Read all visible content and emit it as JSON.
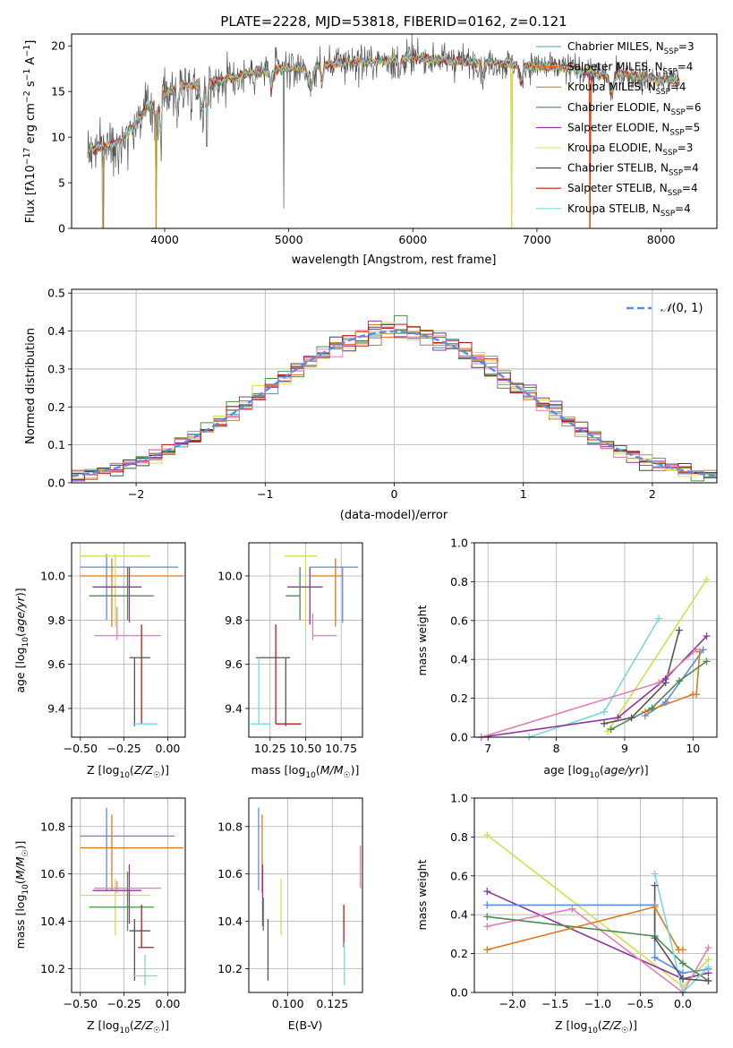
{
  "title": "PLATE=2228, MJD=53818, FIBERID=0162, z=0.121",
  "colors": {
    "Chabrier MILES": "#4a9db0",
    "Salpeter MILES": "#e2671a",
    "Kroupa MILES": "#c08a30",
    "Chabrier ELODIE": "#4e8b50",
    "Salpeter ELODIE": "#8e34a0",
    "Kroupa ELODIE": "#d4e24c",
    "Chabrier STELIB": "#444444",
    "Salpeter STELIB": "#c01818",
    "Kroupa STELIB": "#7ad8dc",
    "blue": "#5b8ce3",
    "orange": "#e07a1a",
    "green": "#4e8b50",
    "purple": "#8e34a0",
    "pink": "#e47fb4",
    "gray": "#555555",
    "red": "#c01818",
    "cyan": "#7ad8dc",
    "lime": "#cfe24c"
  },
  "chart_data": [
    {
      "type": "line",
      "name": "spectrum",
      "xlabel": "wavelength [Angstrom, rest frame]",
      "ylabel": "Flux [f_λ10^-17 erg cm^-2 s^-1 A^-1]",
      "xlim": [
        3250,
        8450
      ],
      "ylim": [
        0,
        21.3
      ],
      "xticks": [
        4000,
        5000,
        6000,
        7000,
        8000
      ],
      "yticks": [
        0,
        5,
        10,
        15,
        20
      ],
      "legend": [
        "Chabrier MILES, N_SSP=3",
        "Salpeter MILES, N_SSP=4",
        "Kroupa MILES, N_SSP=4",
        "Chabrier ELODIE, N_SSP=6",
        "Salpeter ELODIE, N_SSP=5",
        "Kroupa ELODIE, N_SSP=3",
        "Chabrier STELIB, N_SSP=4",
        "Salpeter STELIB, N_SSP=4",
        "Kroupa STELIB, N_SSP=4"
      ],
      "legend_loc": "lower right",
      "continuum": [
        [
          3380,
          8.6
        ],
        [
          3500,
          8.9
        ],
        [
          3650,
          9.6
        ],
        [
          3750,
          11.3
        ],
        [
          3850,
          13.0
        ],
        [
          3950,
          14.2
        ],
        [
          4100,
          15.6
        ],
        [
          4300,
          15.8
        ],
        [
          4500,
          16.4
        ],
        [
          4700,
          17.0
        ],
        [
          4900,
          17.4
        ],
        [
          5100,
          17.6
        ],
        [
          5300,
          17.9
        ],
        [
          5500,
          18.3
        ],
        [
          5700,
          18.3
        ],
        [
          5900,
          18.6
        ],
        [
          6100,
          18.6
        ],
        [
          6300,
          18.4
        ],
        [
          6500,
          18.2
        ],
        [
          6700,
          18.1
        ],
        [
          6900,
          17.9
        ],
        [
          7100,
          17.7
        ],
        [
          7300,
          17.5
        ],
        [
          7500,
          16.8
        ],
        [
          7700,
          16.9
        ],
        [
          7900,
          16.5
        ],
        [
          8150,
          16.2
        ]
      ],
      "dips": [
        [
          3505,
          0
        ],
        [
          3930,
          0
        ],
        [
          4340,
          9.0
        ],
        [
          4960,
          2.2
        ],
        [
          6795,
          0
        ],
        [
          7425,
          0
        ]
      ]
    },
    {
      "type": "histogram",
      "name": "residuals",
      "xlabel": "(data-model)/error",
      "ylabel": "Normed distribution",
      "xlim": [
        -2.5,
        2.5
      ],
      "ylim": [
        0,
        0.51
      ],
      "xticks": [
        -2,
        -1,
        0,
        1,
        2
      ],
      "yticks": [
        0,
        0.1,
        0.2,
        0.3,
        0.4,
        0.5
      ],
      "legend": "𝒩(0,1)",
      "bin_width": 0.1
    },
    {
      "type": "scatter",
      "name": "age-vs-Z",
      "xlabel": "Z [log10(Z/Z☉)]",
      "ylabel": "age  [log10(age/yr)]",
      "xlim": [
        -0.55,
        0.1
      ],
      "ylim": [
        9.27,
        10.15
      ],
      "xticks": [
        -0.5,
        -0.25,
        0.0
      ],
      "yticks": [
        9.4,
        9.6,
        9.8,
        10.0
      ],
      "points": [
        {
          "c": "blue",
          "x": -0.35,
          "xe": [
            -0.5,
            0.06
          ],
          "y": 10.04,
          "ye": [
            9.8,
            10.1
          ]
        },
        {
          "c": "orange",
          "x": -0.32,
          "xe": [
            -0.5,
            0.09
          ],
          "y": 10.0,
          "ye": [
            9.77,
            10.08
          ]
        },
        {
          "c": "lime",
          "x": -0.3,
          "xe": [
            -0.5,
            -0.1
          ],
          "y": 10.09,
          "ye": [
            9.77,
            10.1
          ]
        },
        {
          "c": "purple",
          "x": -0.22,
          "xe": [
            -0.43,
            -0.15
          ],
          "y": 9.95,
          "ye": [
            9.79,
            10.04
          ]
        },
        {
          "c": "green",
          "x": -0.23,
          "xe": [
            -0.45,
            -0.08
          ],
          "y": 9.91,
          "ye": [
            9.8,
            10.04
          ]
        },
        {
          "c": "pink",
          "x": -0.29,
          "xe": [
            -0.42,
            -0.04
          ],
          "y": 9.73,
          "ye": [
            9.71,
            9.86
          ]
        },
        {
          "c": "red",
          "x": -0.15,
          "xe": [
            -0.15,
            -0.15
          ],
          "y": 9.72,
          "ye": [
            9.33,
            9.78
          ]
        },
        {
          "c": "gray",
          "x": -0.19,
          "xe": [
            -0.22,
            -0.1
          ],
          "y": 9.63,
          "ye": [
            9.32,
            9.63
          ]
        },
        {
          "c": "cyan",
          "x": -0.13,
          "xe": [
            -0.2,
            -0.06
          ],
          "y": 9.33,
          "ye": [
            9.33,
            9.33
          ]
        }
      ]
    },
    {
      "type": "scatter",
      "name": "age-vs-mass",
      "xlabel": "mass [log10(M/M☉)]",
      "ylabel": "",
      "xlim": [
        10.1,
        10.9
      ],
      "ylim": [
        9.27,
        10.15
      ],
      "xticks": [
        10.25,
        10.5,
        10.75
      ],
      "yticks": [
        9.4,
        9.6,
        9.8,
        10.0
      ],
      "points": [
        {
          "c": "blue",
          "x": 10.76,
          "xe": [
            10.53,
            10.87
          ],
          "y": 10.04,
          "ye": [
            9.79,
            10.04
          ]
        },
        {
          "c": "orange",
          "x": 10.71,
          "xe": [
            10.53,
            10.76
          ],
          "y": 10.0,
          "ye": [
            9.77,
            10.08
          ]
        },
        {
          "c": "lime",
          "x": 10.5,
          "xe": [
            10.35,
            10.58
          ],
          "y": 10.09,
          "ye": [
            9.77,
            10.09
          ]
        },
        {
          "c": "purple",
          "x": 10.53,
          "xe": [
            10.37,
            10.62
          ],
          "y": 9.95,
          "ye": [
            9.78,
            10.04
          ]
        },
        {
          "c": "green",
          "x": 10.46,
          "xe": [
            10.36,
            10.46
          ],
          "y": 9.91,
          "ye": [
            9.8,
            10.04
          ]
        },
        {
          "c": "pink",
          "x": 10.55,
          "xe": [
            10.55,
            10.72
          ],
          "y": 9.73,
          "ye": [
            9.71,
            9.83
          ]
        },
        {
          "c": "red",
          "x": 10.29,
          "xe": [
            10.29,
            10.47
          ],
          "y": 9.33,
          "ye": [
            9.33,
            9.78
          ]
        },
        {
          "c": "gray",
          "x": 10.36,
          "xe": [
            10.15,
            10.39
          ],
          "y": 9.63,
          "ye": [
            9.32,
            9.63
          ]
        },
        {
          "c": "cyan",
          "x": 10.17,
          "xe": [
            10.11,
            10.25
          ],
          "y": 9.33,
          "ye": [
            9.33,
            9.63
          ]
        }
      ]
    },
    {
      "type": "line",
      "name": "weight-vs-age",
      "xlabel": "age  [log10(age/yr)]",
      "ylabel": "mass weight",
      "xlim": [
        6.8,
        10.35
      ],
      "ylim": [
        0,
        1.0
      ],
      "xticks": [
        7,
        8,
        9,
        10
      ],
      "yticks": [
        0,
        0.2,
        0.4,
        0.6,
        0.8,
        1.0
      ],
      "series": [
        {
          "c": "cyan",
          "x": [
            7.6,
            8.7,
            9.5
          ],
          "y": [
            0.0,
            0.13,
            0.61
          ]
        },
        {
          "c": "lime",
          "x": [
            8.75,
            10.2
          ],
          "y": [
            0.03,
            0.81
          ]
        },
        {
          "c": "gray",
          "x": [
            8.7,
            9.1,
            9.6,
            9.8
          ],
          "y": [
            0.07,
            0.1,
            0.28,
            0.55
          ]
        },
        {
          "c": "purple",
          "x": [
            6.9,
            8.9,
            9.6,
            10.2
          ],
          "y": [
            0.0,
            0.1,
            0.3,
            0.52
          ]
        },
        {
          "c": "pink",
          "x": [
            6.9,
            9.5,
            10.05
          ],
          "y": [
            0.0,
            0.28,
            0.45
          ]
        },
        {
          "c": "blue",
          "x": [
            9.3,
            9.6,
            10.15
          ],
          "y": [
            0.11,
            0.18,
            0.45
          ]
        },
        {
          "c": "orange",
          "x": [
            9.3,
            10.0,
            10.05,
            10.1
          ],
          "y": [
            0.13,
            0.22,
            0.22,
            0.44
          ]
        },
        {
          "c": "green",
          "x": [
            8.8,
            9.4,
            9.8,
            10.2
          ],
          "y": [
            0.04,
            0.15,
            0.29,
            0.39
          ]
        }
      ]
    },
    {
      "type": "scatter",
      "name": "mass-vs-Z",
      "xlabel": "Z [log10(Z/Z☉)]",
      "ylabel": "mass [log10(M/M☉)]",
      "xlim": [
        -0.55,
        0.1
      ],
      "ylim": [
        10.1,
        10.92
      ],
      "xticks": [
        -0.5,
        -0.25,
        0.0
      ],
      "yticks": [
        10.2,
        10.4,
        10.6,
        10.8
      ],
      "points": [
        {
          "c": "blue",
          "x": -0.35,
          "xe": [
            -0.5,
            0.04
          ],
          "y": 10.76,
          "ye": [
            10.53,
            10.88
          ]
        },
        {
          "c": "orange",
          "x": -0.32,
          "xe": [
            -0.5,
            0.09
          ],
          "y": 10.71,
          "ye": [
            10.53,
            10.85
          ]
        },
        {
          "c": "lime",
          "x": -0.3,
          "xe": [
            -0.5,
            -0.1
          ],
          "y": 10.51,
          "ye": [
            10.34,
            10.58
          ]
        },
        {
          "c": "purple",
          "x": -0.22,
          "xe": [
            -0.43,
            -0.15
          ],
          "y": 10.53,
          "ye": [
            10.39,
            10.64
          ]
        },
        {
          "c": "pink",
          "x": -0.29,
          "xe": [
            -0.42,
            -0.04
          ],
          "y": 10.54,
          "ye": [
            10.52,
            10.57
          ]
        },
        {
          "c": "green",
          "x": -0.23,
          "xe": [
            -0.45,
            -0.08
          ],
          "y": 10.46,
          "ye": [
            10.36,
            10.61
          ]
        },
        {
          "c": "gray",
          "x": -0.19,
          "xe": [
            -0.22,
            -0.1
          ],
          "y": 10.36,
          "ye": [
            10.15,
            10.41
          ]
        },
        {
          "c": "red",
          "x": -0.15,
          "xe": [
            -0.17,
            -0.08
          ],
          "y": 10.29,
          "ye": [
            10.29,
            10.47
          ]
        },
        {
          "c": "cyan",
          "x": -0.13,
          "xe": [
            -0.2,
            -0.06
          ],
          "y": 10.17,
          "ye": [
            10.13,
            10.26
          ]
        }
      ]
    },
    {
      "type": "scatter",
      "name": "mass-vs-ebv",
      "xlabel": "E(B-V)",
      "ylabel": "",
      "xlim": [
        0.078,
        0.142
      ],
      "ylim": [
        10.1,
        10.92
      ],
      "xticks": [
        0.1,
        0.125
      ],
      "yticks": [
        10.2,
        10.4,
        10.6,
        10.8
      ],
      "points": [
        {
          "c": "blue",
          "x": 0.0835,
          "ye": [
            10.53,
            10.88
          ]
        },
        {
          "c": "orange",
          "x": 0.0855,
          "ye": [
            10.52,
            10.85
          ]
        },
        {
          "c": "purple",
          "x": 0.0858,
          "ye": [
            10.38,
            10.64
          ]
        },
        {
          "c": "green",
          "x": 0.0862,
          "ye": [
            10.36,
            10.5
          ]
        },
        {
          "c": "gray",
          "x": 0.0888,
          "ye": [
            10.15,
            10.41
          ]
        },
        {
          "c": "lime",
          "x": 0.0962,
          "ye": [
            10.34,
            10.58
          ]
        },
        {
          "c": "red",
          "x": 0.1315,
          "ye": [
            10.29,
            10.47
          ]
        },
        {
          "c": "cyan",
          "x": 0.1318,
          "ye": [
            10.13,
            10.31
          ]
        },
        {
          "c": "pink",
          "x": 0.1408,
          "ye": [
            10.54,
            10.72
          ]
        }
      ]
    },
    {
      "type": "line",
      "name": "weight-vs-Z",
      "xlabel": "Z [log10(Z/Z☉)]",
      "ylabel": "mass weight",
      "xlim": [
        -2.45,
        0.4
      ],
      "ylim": [
        0,
        1.0
      ],
      "xticks": [
        -2.0,
        -1.5,
        -1.0,
        -0.5,
        0.0
      ],
      "yticks": [
        0,
        0.2,
        0.4,
        0.6,
        0.8,
        1.0
      ],
      "series": [
        {
          "c": "lime",
          "x": [
            -2.3,
            0.0,
            0.3
          ],
          "y": [
            0.81,
            0.03,
            0.17
          ]
        },
        {
          "c": "purple",
          "x": [
            -2.3,
            0.0,
            0.3
          ],
          "y": [
            0.52,
            0.07,
            0.1
          ]
        },
        {
          "c": "blue",
          "x": [
            -2.3,
            -0.33,
            -0.33,
            0.0,
            0.3
          ],
          "y": [
            0.45,
            0.45,
            0.18,
            0.1,
            0.12
          ]
        },
        {
          "c": "pink",
          "x": [
            -2.3,
            -1.3,
            0.0,
            0.3
          ],
          "y": [
            0.34,
            0.43,
            0.0,
            0.23
          ]
        },
        {
          "c": "green",
          "x": [
            -2.3,
            -0.33,
            0.0,
            0.3
          ],
          "y": [
            0.39,
            0.29,
            0.15,
            0.06
          ]
        },
        {
          "c": "orange",
          "x": [
            -2.3,
            -0.33,
            -0.05,
            0.0
          ],
          "y": [
            0.22,
            0.44,
            0.22,
            0.22
          ]
        },
        {
          "c": "cyan",
          "x": [
            -0.33,
            0.0,
            0.3
          ],
          "y": [
            0.61,
            0.0,
            0.13
          ]
        },
        {
          "c": "gray",
          "x": [
            -0.33,
            -0.33,
            0.0,
            0.3
          ],
          "y": [
            0.55,
            0.28,
            0.07,
            0.06
          ]
        }
      ]
    }
  ]
}
